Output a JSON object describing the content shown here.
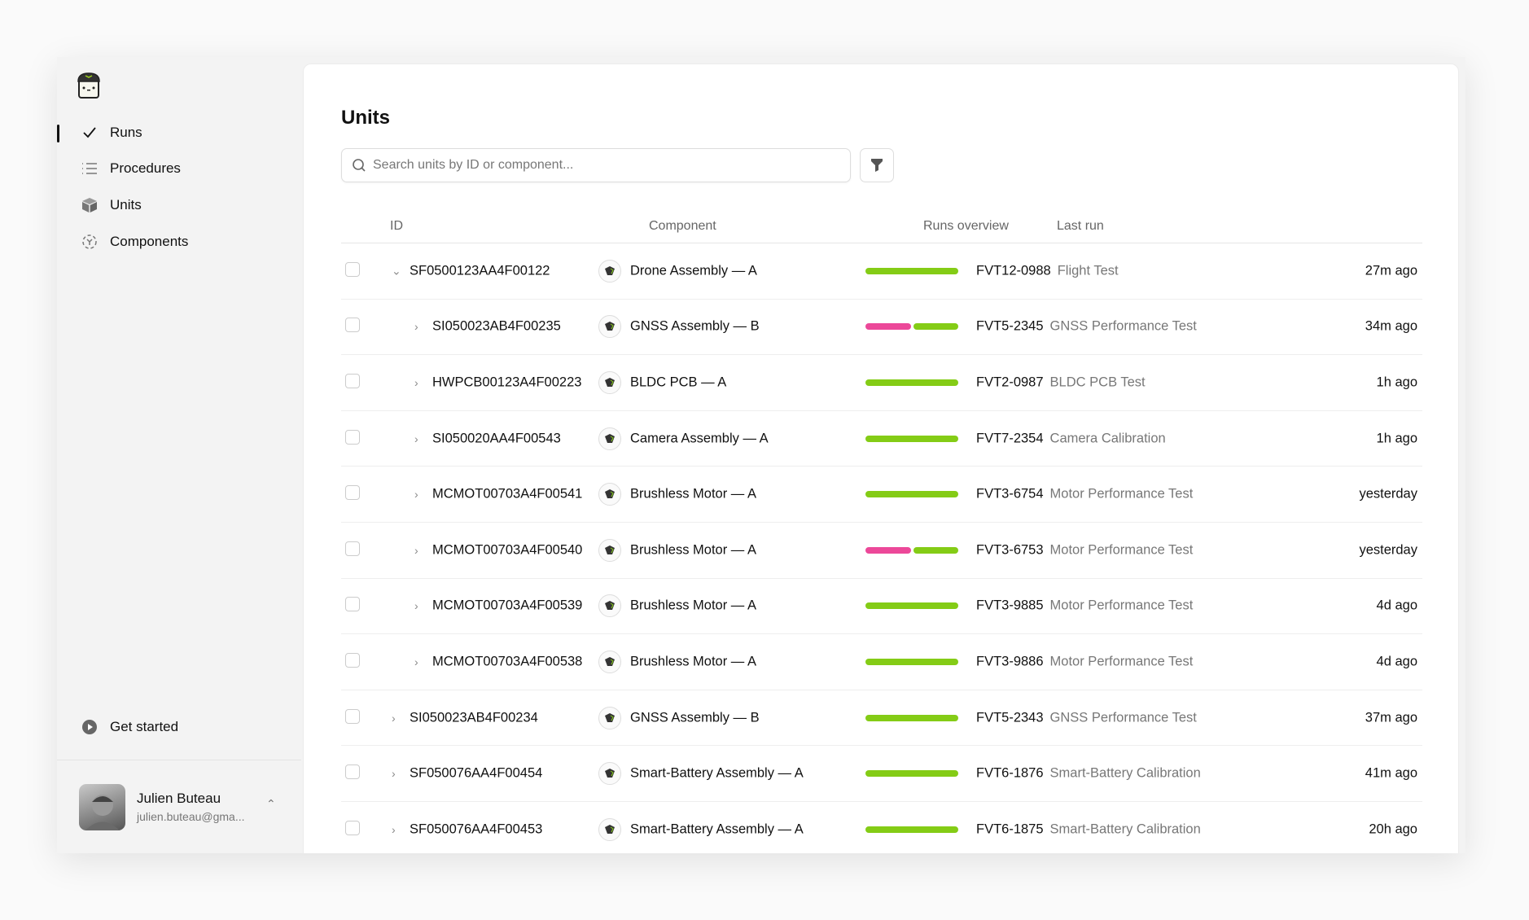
{
  "colors": {
    "pass": "#84cc16",
    "fail": "#ec4899",
    "accent": "#111111"
  },
  "sidebar": {
    "items": [
      {
        "label": "Runs",
        "icon": "check-icon",
        "active": true
      },
      {
        "label": "Procedures",
        "icon": "list-icon"
      },
      {
        "label": "Units",
        "icon": "cube-icon"
      },
      {
        "label": "Components",
        "icon": "component-icon"
      }
    ],
    "get_started": "Get started",
    "user": {
      "name": "Julien Buteau",
      "email": "julien.buteau@gma..."
    }
  },
  "main": {
    "title": "Units",
    "search": {
      "placeholder": "Search units by ID or component...",
      "value": ""
    },
    "columns": {
      "id": "ID",
      "component": "Component",
      "runs": "Runs overview",
      "last_run": "Last run"
    },
    "rows": [
      {
        "id": "SF0500123AA4F00122",
        "level": 0,
        "expanded": true,
        "component": "Drone Assembly — A",
        "runs": {
          "fail": 0,
          "pass": 1
        },
        "run_id": "FVT12-0988",
        "run_name": "Flight Test",
        "time": "27m ago"
      },
      {
        "id": "SI050023AB4F00235",
        "level": 1,
        "component": "GNSS Assembly — B",
        "runs": {
          "fail": 1,
          "pass": 1
        },
        "run_id": "FVT5-2345",
        "run_name": "GNSS Performance Test",
        "time": "34m ago"
      },
      {
        "id": "HWPCB00123A4F00223",
        "level": 1,
        "component": "BLDC PCB — A",
        "runs": {
          "fail": 0,
          "pass": 1
        },
        "run_id": "FVT2-0987",
        "run_name": "BLDC PCB Test",
        "time": "1h ago"
      },
      {
        "id": "SI050020AA4F00543",
        "level": 1,
        "component": "Camera Assembly — A",
        "runs": {
          "fail": 0,
          "pass": 1
        },
        "run_id": "FVT7-2354",
        "run_name": "Camera Calibration",
        "time": "1h ago"
      },
      {
        "id": "MCMOT00703A4F00541",
        "level": 1,
        "component": "Brushless Motor — A",
        "runs": {
          "fail": 0,
          "pass": 1
        },
        "run_id": "FVT3-6754",
        "run_name": "Motor Performance Test",
        "time": "yesterday"
      },
      {
        "id": "MCMOT00703A4F00540",
        "level": 1,
        "component": "Brushless Motor — A",
        "runs": {
          "fail": 1,
          "pass": 1
        },
        "run_id": "FVT3-6753",
        "run_name": "Motor Performance Test",
        "time": "yesterday"
      },
      {
        "id": "MCMOT00703A4F00539",
        "level": 1,
        "component": "Brushless Motor — A",
        "runs": {
          "fail": 0,
          "pass": 1
        },
        "run_id": "FVT3-9885",
        "run_name": "Motor Performance Test",
        "time": "4d ago"
      },
      {
        "id": "MCMOT00703A4F00538",
        "level": 1,
        "component": "Brushless Motor — A",
        "runs": {
          "fail": 0,
          "pass": 1
        },
        "run_id": "FVT3-9886",
        "run_name": "Motor Performance Test",
        "time": "4d ago"
      },
      {
        "id": "SI050023AB4F00234",
        "level": 0,
        "component": "GNSS Assembly — B",
        "runs": {
          "fail": 0,
          "pass": 1
        },
        "run_id": "FVT5-2343",
        "run_name": "GNSS Performance Test",
        "time": "37m ago"
      },
      {
        "id": "SF050076AA4F00454",
        "level": 0,
        "component": "Smart-Battery Assembly — A",
        "runs": {
          "fail": 0,
          "pass": 1
        },
        "run_id": "FVT6-1876",
        "run_name": "Smart-Battery Calibration",
        "time": "41m ago"
      },
      {
        "id": "SF050076AA4F00453",
        "level": 0,
        "component": "Smart-Battery Assembly — A",
        "runs": {
          "fail": 0,
          "pass": 1
        },
        "run_id": "FVT6-1875",
        "run_name": "Smart-Battery Calibration",
        "time": "20h ago"
      }
    ]
  }
}
